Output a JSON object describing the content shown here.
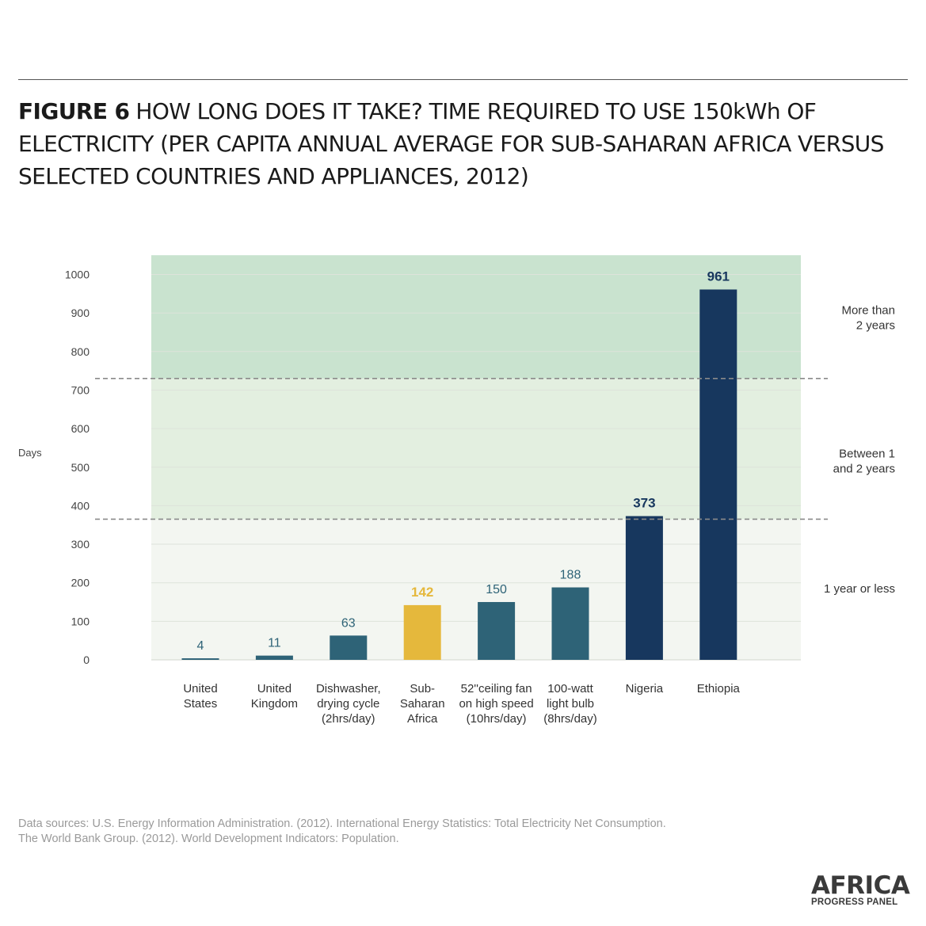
{
  "header": {
    "figure_label": "FIGURE 6",
    "title": "HOW LONG DOES IT TAKE? TIME REQUIRED TO USE 150kWh OF ELECTRICITY (PER CAPITA ANNUAL AVERAGE FOR SUB-SAHARAN AFRICA VERSUS SELECTED COUNTRIES AND APPLIANCES, 2012)"
  },
  "chart_data": {
    "type": "bar",
    "ylabel": "Days",
    "ylim": [
      0,
      1000
    ],
    "yticks": [
      0,
      100,
      200,
      300,
      400,
      500,
      600,
      700,
      800,
      900,
      1000
    ],
    "plot_top_value": 1050,
    "grid": true,
    "categories": [
      [
        "United",
        "States"
      ],
      [
        "United",
        "Kingdom"
      ],
      [
        "Dishwasher,",
        "drying cycle",
        "(2hrs/day)"
      ],
      [
        "Sub-",
        "Saharan",
        "Africa"
      ],
      [
        "52''ceiling fan",
        "on high speed",
        "(10hrs/day)"
      ],
      [
        "100-watt",
        "light bulb",
        "(8hrs/day)"
      ],
      [
        "Nigeria"
      ],
      [
        "Ethiopia"
      ]
    ],
    "values": [
      4,
      11,
      63,
      142,
      150,
      188,
      373,
      961
    ],
    "value_labels": [
      "4",
      "11",
      "63",
      "142",
      "150",
      "188",
      "373",
      "961"
    ],
    "bar_colors": [
      "#2e6377",
      "#2e6377",
      "#2e6377",
      "#e5b83c",
      "#2e6377",
      "#2e6377",
      "#17375e",
      "#17375e"
    ],
    "label_colors": [
      "#2e6377",
      "#2e6377",
      "#2e6377",
      "#e5b83c",
      "#2e6377",
      "#2e6377",
      "#17375e",
      "#17375e"
    ],
    "label_bold": [
      false,
      false,
      false,
      true,
      false,
      false,
      true,
      true
    ],
    "bands": [
      {
        "from": 0,
        "to": 365,
        "color": "#f3f6f1",
        "label": [
          "1 year or less"
        ]
      },
      {
        "from": 365,
        "to": 730,
        "color": "#e3efe0",
        "label": [
          "Between 1",
          "and 2 years"
        ]
      },
      {
        "from": 730,
        "to": 1050,
        "color": "#c9e3cf",
        "label": [
          "More than",
          "2 years"
        ]
      }
    ],
    "thresholds": [
      365,
      730
    ],
    "colors": {
      "axis_text": "#444444",
      "gridline": "#dde3da",
      "threshold_line": "#8a8a8a"
    }
  },
  "sources": [
    "Data sources: U.S. Energy Information Administration. (2012). International Energy Statistics: Total Electricity Net Consumption.",
    "The World Bank Group. (2012). World Development Indicators: Population."
  ],
  "logo": {
    "name": "AFRICA",
    "tagline": "PROGRESS PANEL"
  }
}
